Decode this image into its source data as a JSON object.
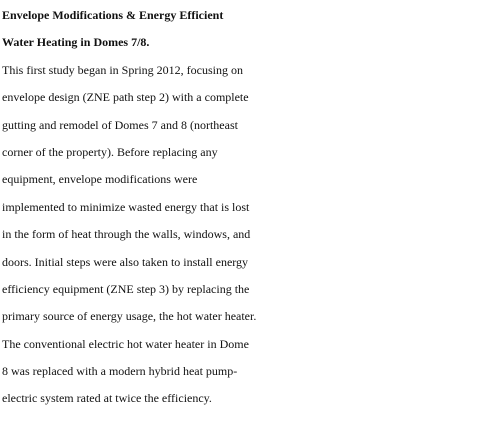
{
  "document": {
    "title_lines": [
      "Envelope Modifications & Energy Efficient",
      "Water Heating in Domes 7/8."
    ],
    "body_lines": [
      "This first study began in Spring 2012, focusing on",
      "envelope design (ZNE path step 2) with a complete",
      "gutting and remodel of Domes 7 and 8 (northeast",
      "corner of the property). Before replacing any",
      "equipment, envelope modifications were",
      "implemented to minimize wasted energy that is lost",
      "in the form of heat through the walls, windows, and",
      "doors. Initial steps were also taken to install energy",
      "efficiency equipment (ZNE step 3) by replacing the",
      "primary source of energy usage, the hot water heater.",
      "The conventional electric hot water heater in Dome",
      "8 was replaced with a modern hybrid heat pump-",
      "electric system rated at twice the efficiency."
    ]
  }
}
